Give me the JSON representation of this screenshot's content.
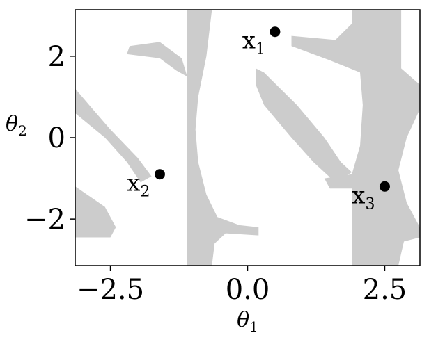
{
  "chart_data": {
    "type": "scatter",
    "xlabel": "θ",
    "xlabel_sub": "1",
    "ylabel": "θ",
    "ylabel_sub": "2",
    "xlim": [
      -3.14159,
      3.14159
    ],
    "ylim": [
      -3.14159,
      3.14159
    ],
    "x_ticks": [
      -2.5,
      0.0,
      2.5
    ],
    "x_tick_labels": [
      "−2.5",
      "0.0",
      "2.5"
    ],
    "y_ticks": [
      2,
      0,
      -2
    ],
    "y_tick_labels": [
      "2",
      "0",
      "−2"
    ],
    "grid": false,
    "legend": "none",
    "colors": {
      "region": "#cccccc",
      "points": "#000000",
      "background": "#ffffff"
    },
    "points": [
      {
        "label": "x",
        "sub": "1",
        "x": 0.5,
        "y": 2.6
      },
      {
        "label": "x",
        "sub": "2",
        "x": -1.6,
        "y": -0.9
      },
      {
        "label": "x",
        "sub": "3",
        "x": 2.5,
        "y": -1.2
      }
    ],
    "regions": [
      [
        [
          -1.1,
          3.14
        ],
        [
          -0.65,
          3.14
        ],
        [
          -0.75,
          2.0
        ],
        [
          -0.9,
          1.0
        ],
        [
          -0.95,
          0.2
        ],
        [
          -0.9,
          -0.6
        ],
        [
          -0.75,
          -1.4
        ],
        [
          -0.55,
          -1.95
        ],
        [
          -0.15,
          -2.15
        ],
        [
          0.2,
          -2.2
        ],
        [
          0.2,
          -2.4
        ],
        [
          -0.4,
          -2.35
        ],
        [
          -0.6,
          -2.6
        ],
        [
          -0.65,
          -3.14
        ],
        [
          -1.1,
          -3.14
        ]
      ],
      [
        [
          1.9,
          3.14
        ],
        [
          2.8,
          3.14
        ],
        [
          2.8,
          1.7
        ],
        [
          3.14,
          1.3
        ],
        [
          3.14,
          0.7
        ],
        [
          2.9,
          0.0
        ],
        [
          2.75,
          -0.8
        ],
        [
          2.9,
          -1.6
        ],
        [
          3.14,
          -2.2
        ],
        [
          3.14,
          -2.45
        ],
        [
          2.85,
          -2.55
        ],
        [
          2.75,
          -3.14
        ],
        [
          1.9,
          -3.14
        ],
        [
          1.9,
          -1.25
        ],
        [
          1.5,
          -1.25
        ],
        [
          1.4,
          -1.0
        ],
        [
          1.9,
          -0.9
        ],
        [
          2.05,
          -0.2
        ],
        [
          2.1,
          0.8
        ],
        [
          2.05,
          1.6
        ],
        [
          1.5,
          1.9
        ],
        [
          0.8,
          2.25
        ],
        [
          0.8,
          2.5
        ],
        [
          1.6,
          2.4
        ],
        [
          1.9,
          2.8
        ]
      ],
      [
        [
          -2.15,
          2.25
        ],
        [
          -1.6,
          2.35
        ],
        [
          -1.2,
          1.95
        ],
        [
          -1.1,
          1.5
        ],
        [
          -1.3,
          1.65
        ],
        [
          -1.6,
          1.95
        ],
        [
          -2.2,
          2.05
        ]
      ],
      [
        [
          0.15,
          1.7
        ],
        [
          0.3,
          1.6
        ],
        [
          0.9,
          0.8
        ],
        [
          1.4,
          0.0
        ],
        [
          1.7,
          -0.6
        ],
        [
          1.9,
          -0.85
        ],
        [
          1.6,
          -1.1
        ],
        [
          1.2,
          -0.6
        ],
        [
          0.8,
          0.0
        ],
        [
          0.3,
          0.8
        ],
        [
          0.15,
          1.3
        ]
      ],
      [
        [
          -3.14,
          1.2
        ],
        [
          -2.95,
          0.9
        ],
        [
          -2.5,
          0.2
        ],
        [
          -2.0,
          -0.5
        ],
        [
          -1.75,
          -0.95
        ],
        [
          -1.95,
          -1.1
        ],
        [
          -2.2,
          -0.6
        ],
        [
          -2.6,
          0.0
        ],
        [
          -3.14,
          0.6
        ]
      ],
      [
        [
          -3.14,
          -1.2
        ],
        [
          -2.6,
          -1.7
        ],
        [
          -2.4,
          -2.2
        ],
        [
          -2.5,
          -2.45
        ],
        [
          -3.14,
          -2.45
        ]
      ],
      [
        [
          2.15,
          3.14
        ],
        [
          2.3,
          3.14
        ],
        [
          2.2,
          2.7
        ],
        [
          2.05,
          2.55
        ],
        [
          1.9,
          2.55
        ]
      ]
    ]
  }
}
